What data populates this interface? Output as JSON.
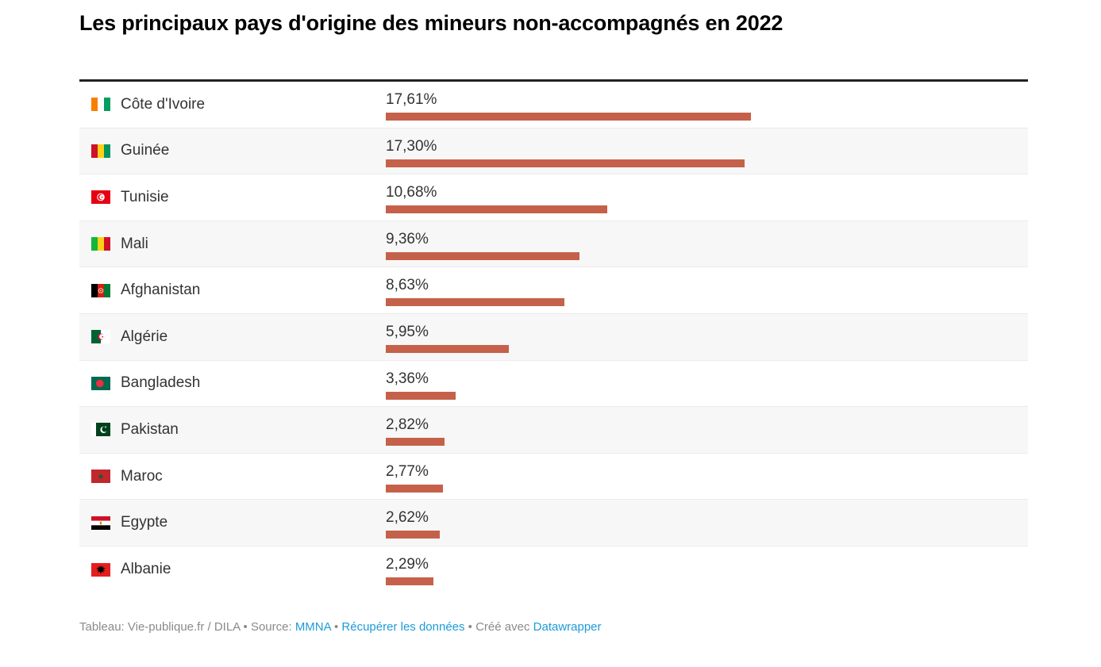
{
  "title": "Les principaux pays d'origine des mineurs non-accompagnés en 2022",
  "chart_data": {
    "type": "bar",
    "orientation": "horizontal",
    "title": "Les principaux pays d'origine des mineurs non-accompagnés en 2022",
    "unit": "%",
    "categories": [
      "Côte d'Ivoire",
      "Guinée",
      "Tunisie",
      "Mali",
      "Afghanistan",
      "Algérie",
      "Bangladesh",
      "Pakistan",
      "Maroc",
      "Egypte",
      "Albanie"
    ],
    "values": [
      17.61,
      17.3,
      10.68,
      9.36,
      8.63,
      5.95,
      3.36,
      2.82,
      2.77,
      2.62,
      2.29
    ],
    "value_labels": [
      "17,61%",
      "17,30%",
      "10,68%",
      "9,36%",
      "8,63%",
      "5,95%",
      "3,36%",
      "2,82%",
      "2,77%",
      "2,62%",
      "2,29%"
    ],
    "xlim": [
      0,
      17.61
    ],
    "bar_color": "#c5614a",
    "row_stripe_color": "#f7f7f7",
    "grid": false,
    "legend": "none",
    "flag_icons": [
      "flag-cote-divoire-icon",
      "flag-guinee-icon",
      "flag-tunisie-icon",
      "flag-mali-icon",
      "flag-afghanistan-icon",
      "flag-algerie-icon",
      "flag-bangladesh-icon",
      "flag-pakistan-icon",
      "flag-maroc-icon",
      "flag-egypte-icon",
      "flag-albanie-icon"
    ]
  },
  "footer": {
    "credit_prefix": "Tableau: Vie-publique.fr / DILA • Source: ",
    "source_link": "MMNA",
    "separator": " • ",
    "data_link": "Récupérer les données",
    "created_with": " • Créé avec ",
    "tool_link": "Datawrapper",
    "link_color": "#1d9bd9"
  },
  "colors": {
    "bar": "#c5614a",
    "row_stripe": "#f7f7f7",
    "row_border": "#ebebeb",
    "table_top_border": "#222222",
    "text": "#333333",
    "footer_text": "#8a8a8a",
    "link": "#1d9bd9"
  }
}
